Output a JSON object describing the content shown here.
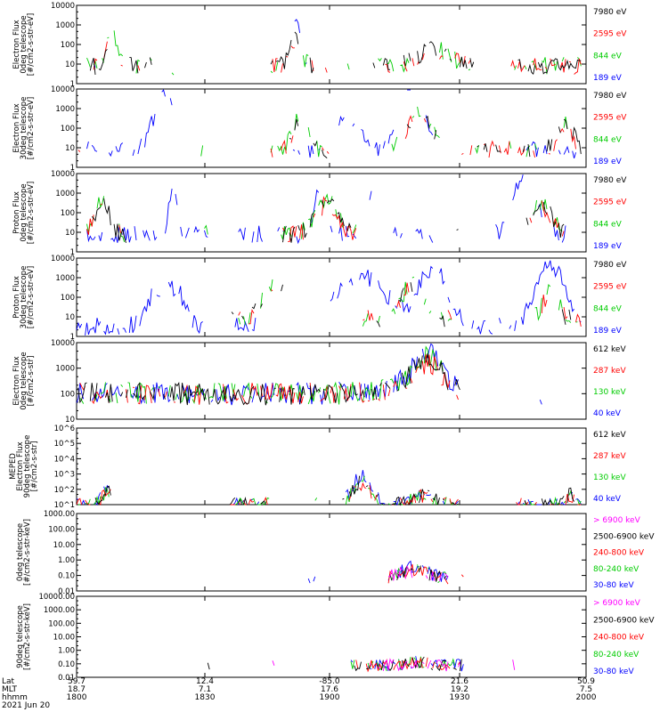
{
  "chart_data": [
    {
      "type": "line",
      "ylabel": [
        "Electron Flux",
        "0deg telescope",
        "[#/cm2-s-str-eV]"
      ],
      "yscale": "log",
      "ylim": [
        1,
        10000
      ],
      "yticks": [
        "1",
        "10",
        "100",
        "1000",
        "10000"
      ],
      "series": [
        {
          "name": "7980 eV",
          "color": "#000000"
        },
        {
          "name": "2595 eV",
          "color": "#ff0000"
        },
        {
          "name": "844 eV",
          "color": "#00cc00"
        },
        {
          "name": "189 eV",
          "color": "#0000ff"
        }
      ]
    },
    {
      "type": "line",
      "ylabel": [
        "Electron Flux",
        "30deg telescope",
        "[#/cm2-s-str-eV]"
      ],
      "yscale": "log",
      "ylim": [
        1,
        10000
      ],
      "yticks": [
        "1",
        "10",
        "100",
        "1000",
        "10000"
      ],
      "series": [
        {
          "name": "7980 eV",
          "color": "#000000"
        },
        {
          "name": "2595 eV",
          "color": "#ff0000"
        },
        {
          "name": "844 eV",
          "color": "#00cc00"
        },
        {
          "name": "189 eV",
          "color": "#0000ff"
        }
      ]
    },
    {
      "type": "line",
      "ylabel": [
        "Proton Flux",
        "0deg telescope",
        "[#/cm2-s-str-eV]"
      ],
      "yscale": "log",
      "ylim": [
        1,
        10000
      ],
      "yticks": [
        "1",
        "10",
        "100",
        "1000",
        "10000"
      ],
      "series": [
        {
          "name": "7980 eV",
          "color": "#000000"
        },
        {
          "name": "2595 eV",
          "color": "#ff0000"
        },
        {
          "name": "844 eV",
          "color": "#00cc00"
        },
        {
          "name": "189 eV",
          "color": "#0000ff"
        }
      ]
    },
    {
      "type": "line",
      "ylabel": [
        "Proton Flux",
        "30deg telescope",
        "[#/cm2-s-str-eV]"
      ],
      "yscale": "log",
      "ylim": [
        1,
        10000
      ],
      "yticks": [
        "1",
        "10",
        "100",
        "1000",
        "10000"
      ],
      "series": [
        {
          "name": "7980 eV",
          "color": "#000000"
        },
        {
          "name": "2595 eV",
          "color": "#ff0000"
        },
        {
          "name": "844 eV",
          "color": "#00cc00"
        },
        {
          "name": "189 eV",
          "color": "#0000ff"
        }
      ]
    },
    {
      "type": "line",
      "ylabel": [
        "Electron Flux",
        "0deg telescope",
        "[#/cm2-s-str]"
      ],
      "yscale": "log",
      "ylim": [
        10,
        10000
      ],
      "yticks": [
        "10",
        "100",
        "1000",
        "10000"
      ],
      "series": [
        {
          "name": "612 keV",
          "color": "#000000"
        },
        {
          "name": "287 keV",
          "color": "#ff0000"
        },
        {
          "name": "130 keV",
          "color": "#00cc00"
        },
        {
          "name": "40 keV",
          "color": "#0000ff"
        }
      ]
    },
    {
      "type": "line",
      "ylabel": [
        "MEPED",
        "Electron Flux",
        "90deg telescope",
        "[#/cm2-s-str]"
      ],
      "yscale": "log",
      "ylim": [
        10,
        1000000
      ],
      "yticks": [
        "10^1",
        "10^2",
        "10^3",
        "10^4",
        "10^5",
        "10^6"
      ],
      "series": [
        {
          "name": "612 keV",
          "color": "#000000"
        },
        {
          "name": "287 keV",
          "color": "#ff0000"
        },
        {
          "name": "130 keV",
          "color": "#00cc00"
        },
        {
          "name": "40 keV",
          "color": "#0000ff"
        }
      ]
    },
    {
      "type": "line",
      "ylabel": [
        "0deg telescope",
        "[#/cm2-s-str-keV]"
      ],
      "yscale": "log",
      "ylim": [
        0.01,
        1000
      ],
      "yticks": [
        "0.01",
        "0.10",
        "1.00",
        "10.00",
        "100.00",
        "1000.00"
      ],
      "series": [
        {
          "name": "> 6900 keV",
          "color": "#ff00ff"
        },
        {
          "name": "2500-6900 keV",
          "color": "#000000"
        },
        {
          "name": "240-800 keV",
          "color": "#ff0000"
        },
        {
          "name": "80-240 keV",
          "color": "#00cc00"
        },
        {
          "name": "30-80 keV",
          "color": "#0000ff"
        }
      ]
    },
    {
      "type": "line",
      "ylabel": [
        "90deg telescope",
        "[#/cm2-s-str-keV]"
      ],
      "yscale": "log",
      "ylim": [
        0.01,
        10000
      ],
      "yticks": [
        "0.01",
        "0.10",
        "1.00",
        "10.00",
        "100.00",
        "1000.00",
        "10000.00"
      ],
      "series": [
        {
          "name": "> 6900 keV",
          "color": "#ff00ff"
        },
        {
          "name": "2500-6900 keV",
          "color": "#000000"
        },
        {
          "name": "240-800 keV",
          "color": "#ff0000"
        },
        {
          "name": "80-240 keV",
          "color": "#00cc00"
        },
        {
          "name": "30-80 keV",
          "color": "#0000ff"
        }
      ]
    }
  ],
  "x_axis": {
    "row_labels": [
      "Lat",
      "MLT",
      "hhmm"
    ],
    "date": "2021 Jun 20",
    "ticks": [
      {
        "lat": "59.7",
        "mlt": "18.7",
        "hhmm": "1800"
      },
      {
        "lat": "12.4",
        "mlt": "7.1",
        "hhmm": "1830"
      },
      {
        "lat": "-85.0",
        "mlt": "17.6",
        "hhmm": "1900"
      },
      {
        "lat": "21.6",
        "mlt": "19.2",
        "hhmm": "1930"
      },
      {
        "lat": "50.9",
        "mlt": "7.5",
        "hhmm": "2000"
      }
    ]
  }
}
